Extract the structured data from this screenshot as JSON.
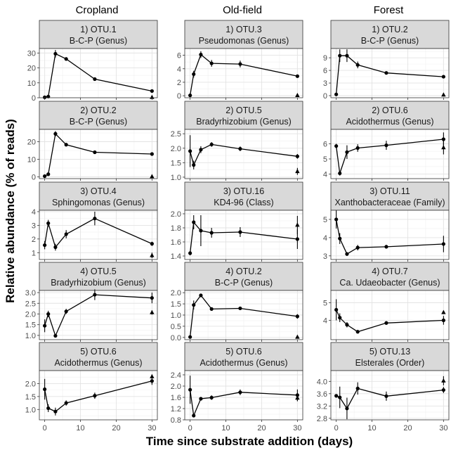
{
  "figure": {
    "ylabel": "Relative abundance (% of reads)",
    "xlabel": "Time since substrate addition (days)",
    "columns": [
      "Cropland",
      "Old-field",
      "Forest"
    ]
  },
  "chart_data": [
    {
      "type": "line",
      "column": "Cropland",
      "row": 1,
      "title_line1": "1)   OTU.1",
      "title_line2": "B-C-P (Genus)",
      "ylim": [
        0,
        33
      ],
      "yticks": [
        0,
        10,
        20,
        30
      ],
      "xlim": [
        -1.5,
        31.5
      ],
      "xticks": [
        0,
        10,
        20,
        30
      ],
      "series": [
        {
          "x": [
            0,
            1,
            3,
            6,
            14,
            30
          ],
          "y": [
            0.3,
            0.8,
            29.5,
            26,
            12.5,
            4.5
          ],
          "err": [
            0,
            0.4,
            2.5,
            1.2,
            0.8,
            0.6
          ]
        }
      ],
      "extra": {
        "x": 30,
        "y": 0.3,
        "marker": "triangle"
      }
    },
    {
      "type": "line",
      "column": "Old-field",
      "row": 1,
      "title_line1": "1)   OTU.3",
      "title_line2": "Pseudomonas (Genus)",
      "ylim": [
        -0.3,
        7.0
      ],
      "yticks": [
        0,
        2,
        4,
        6
      ],
      "xlim": [
        -1.5,
        31.5
      ],
      "xticks": [
        0,
        10,
        20,
        30
      ],
      "series": [
        {
          "x": [
            0,
            1,
            3,
            6,
            14,
            30
          ],
          "y": [
            0.05,
            3.2,
            6.1,
            4.8,
            4.7,
            2.9
          ],
          "err": [
            0,
            0.5,
            0.5,
            0.5,
            0.5,
            0.2
          ]
        }
      ],
      "extra": {
        "x": 30,
        "y": 0.05,
        "marker": "triangle"
      }
    },
    {
      "type": "line",
      "column": "Forest",
      "row": 1,
      "title_line1": "1)   OTU.2",
      "title_line2": "B-C-P (Genus)",
      "ylim": [
        -0.5,
        11.2
      ],
      "yticks": [
        0,
        3,
        6,
        9
      ],
      "xlim": [
        -1.5,
        31.5
      ],
      "xticks": [
        0,
        10,
        20,
        30
      ],
      "series": [
        {
          "x": [
            0,
            1,
            3,
            6,
            14,
            30
          ],
          "y": [
            0.3,
            9.5,
            9.5,
            7.3,
            5.4,
            4.5
          ],
          "err": [
            0,
            1.5,
            1.5,
            0.8,
            0.3,
            0.3
          ]
        }
      ],
      "extra": {
        "x": 30,
        "y": 0.2,
        "marker": "triangle"
      }
    },
    {
      "type": "line",
      "column": "Cropland",
      "row": 2,
      "title_line1": "2)   OTU.2",
      "title_line2": "B-C-P (Genus)",
      "ylim": [
        -1,
        27
      ],
      "yticks": [
        0,
        10,
        20
      ],
      "xlim": [
        -1.5,
        31.5
      ],
      "xticks": [
        0,
        10,
        20,
        30
      ],
      "series": [
        {
          "x": [
            0,
            1,
            3,
            6,
            14,
            30
          ],
          "y": [
            0.4,
            1.5,
            24.5,
            18.3,
            14.0,
            13.0
          ],
          "err": [
            0,
            0.5,
            1.5,
            0.8,
            0.5,
            0.5
          ]
        }
      ],
      "extra": {
        "x": 30,
        "y": 0.2,
        "marker": "triangle"
      }
    },
    {
      "type": "line",
      "column": "Old-field",
      "row": 2,
      "title_line1": "2)   OTU.5",
      "title_line2": "Bradyrhizobium (Genus)",
      "ylim": [
        0.95,
        2.65
      ],
      "yticks": [
        1.0,
        1.5,
        2.0,
        2.5
      ],
      "xlim": [
        -1.5,
        31.5
      ],
      "xticks": [
        0,
        10,
        20,
        30
      ],
      "series": [
        {
          "x": [
            0,
            1,
            3,
            6,
            14,
            30
          ],
          "y": [
            1.9,
            1.42,
            1.95,
            2.13,
            1.98,
            1.72
          ],
          "err": [
            0.55,
            0.15,
            0.12,
            0.08,
            0.08,
            0.08
          ]
        }
      ],
      "extra": {
        "x": 30,
        "y": 1.2,
        "marker": "triangle",
        "err": 0.12
      }
    },
    {
      "type": "line",
      "column": "Forest",
      "row": 2,
      "title_line1": "2)   OTU.6",
      "title_line2": "Acidothermus (Genus)",
      "ylim": [
        3.7,
        6.95
      ],
      "yticks": [
        4,
        5,
        6
      ],
      "xlim": [
        -1.5,
        31.5
      ],
      "xticks": [
        0,
        10,
        20,
        30
      ],
      "series": [
        {
          "x": [
            0,
            1,
            3,
            6,
            14,
            30
          ],
          "y": [
            5.85,
            4.05,
            5.45,
            5.72,
            5.9,
            6.3
          ],
          "err": [
            0.15,
            0.15,
            0.45,
            0.25,
            0.3,
            0.45
          ]
        }
      ],
      "extra": {
        "x": 30,
        "y": 5.75,
        "marker": "triangle",
        "err": 0.45
      }
    },
    {
      "type": "line",
      "column": "Cropland",
      "row": 3,
      "title_line1": "3)   OTU.4",
      "title_line2": "Sphingomonas (Genus)",
      "ylim": [
        0.5,
        4.1
      ],
      "yticks": [
        1,
        2,
        3,
        4
      ],
      "xlim": [
        -1.5,
        31.5
      ],
      "xticks": [
        0,
        10,
        20,
        30
      ],
      "series": [
        {
          "x": [
            0,
            1,
            3,
            6,
            14,
            30
          ],
          "y": [
            1.55,
            3.15,
            1.4,
            2.35,
            3.5,
            1.65
          ],
          "err": [
            0.3,
            0.25,
            0.25,
            0.3,
            0.5,
            0.15
          ]
        }
      ],
      "extra": {
        "x": 30,
        "y": 0.8,
        "marker": "triangle",
        "err": 0.2
      }
    },
    {
      "type": "line",
      "column": "Old-field",
      "row": 3,
      "title_line1": "3)   OTU.16",
      "title_line2": "KD4-96 (Class)",
      "ylim": [
        1.35,
        2.05
      ],
      "yticks": [
        1.4,
        1.6,
        1.8,
        2.0
      ],
      "xlim": [
        -1.5,
        31.5
      ],
      "xticks": [
        0,
        10,
        20,
        30
      ],
      "series": [
        {
          "x": [
            0,
            1,
            3,
            6,
            14,
            30
          ],
          "y": [
            1.44,
            1.88,
            1.76,
            1.73,
            1.74,
            1.64
          ],
          "err": [
            0.03,
            0.1,
            0.22,
            0.07,
            0.07,
            0.14
          ]
        }
      ],
      "extra": {
        "x": 30,
        "y": 1.84,
        "marker": "triangle",
        "err": 0.13
      }
    },
    {
      "type": "line",
      "column": "Forest",
      "row": 3,
      "title_line1": "3)   OTU.11",
      "title_line2": "Xanthobacteraceae (Family)",
      "ylim": [
        2.8,
        5.5
      ],
      "yticks": [
        3,
        4,
        5
      ],
      "xlim": [
        -1.5,
        31.5
      ],
      "xticks": [
        0,
        10,
        20,
        30
      ],
      "series": [
        {
          "x": [
            0,
            1,
            3,
            6,
            14,
            30
          ],
          "y": [
            5.0,
            3.95,
            3.1,
            3.45,
            3.5,
            3.65
          ],
          "err": [
            0.5,
            0.3,
            0.1,
            0.15,
            0.1,
            0.45
          ]
        }
      ]
    },
    {
      "type": "line",
      "column": "Cropland",
      "row": 4,
      "title_line1": "4)   OTU.5",
      "title_line2": "Bradyrhizobium (Genus)",
      "ylim": [
        0.8,
        3.1
      ],
      "yticks": [
        1.0,
        1.5,
        2.0,
        2.5,
        3.0
      ],
      "xlim": [
        -1.5,
        31.5
      ],
      "xticks": [
        0,
        10,
        20,
        30
      ],
      "series": [
        {
          "x": [
            0,
            1,
            3,
            6,
            14,
            30
          ],
          "y": [
            1.45,
            2.0,
            0.98,
            2.12,
            2.9,
            2.75
          ],
          "err": [
            0.3,
            0.15,
            0.08,
            0.12,
            0.25,
            0.25
          ]
        }
      ],
      "extra": {
        "x": 30,
        "y": 2.07,
        "marker": "triangle",
        "err": 0.1
      }
    },
    {
      "type": "line",
      "column": "Old-field",
      "row": 4,
      "title_line1": "4)   OTU.2",
      "title_line2": "B-C-P (Genus)",
      "ylim": [
        -0.1,
        2.1
      ],
      "yticks": [
        0.0,
        0.5,
        1.0,
        1.5,
        2.0
      ],
      "xlim": [
        -1.5,
        31.5
      ],
      "xticks": [
        0,
        10,
        20,
        30
      ],
      "series": [
        {
          "x": [
            0,
            1,
            3,
            6,
            14,
            30
          ],
          "y": [
            0.02,
            1.45,
            1.88,
            1.27,
            1.3,
            0.94
          ],
          "err": [
            0,
            0.2,
            0.05,
            0.05,
            0.05,
            0.1
          ]
        }
      ],
      "extra": {
        "x": 30,
        "y": 0.02,
        "marker": "triangle"
      }
    },
    {
      "type": "line",
      "column": "Forest",
      "row": 4,
      "title_line1": "4)   OTU.7",
      "title_line2": "Ca. Udaeobacter (Genus)",
      "ylim": [
        2.9,
        5.7
      ],
      "yticks": [
        4,
        5
      ],
      "xlim": [
        -1.5,
        31.5
      ],
      "xticks": [
        0,
        10,
        20,
        30
      ],
      "series": [
        {
          "x": [
            0,
            1,
            3,
            6,
            14,
            30
          ],
          "y": [
            4.6,
            4.15,
            3.75,
            3.35,
            3.85,
            4.0
          ],
          "err": [
            0.6,
            0.25,
            0.15,
            0.1,
            0.1,
            0.25
          ]
        }
      ],
      "extra": {
        "x": 30,
        "y": 4.45,
        "marker": "triangle"
      }
    },
    {
      "type": "line",
      "column": "Cropland",
      "row": 5,
      "title_line1": "5)   OTU.6",
      "title_line2": "Acidothermus (Genus)",
      "ylim": [
        0.6,
        2.5
      ],
      "yticks": [
        1.0,
        1.5,
        2.0
      ],
      "xlim": [
        -1.5,
        31.5
      ],
      "xticks": [
        0,
        10,
        20,
        30
      ],
      "series": [
        {
          "x": [
            0,
            1,
            3,
            6,
            14,
            30
          ],
          "y": [
            1.78,
            1.05,
            0.92,
            1.25,
            1.53,
            2.1
          ],
          "err": [
            0.4,
            0.15,
            0.15,
            0.1,
            0.12,
            0.15
          ]
        }
      ],
      "extra": {
        "x": 30,
        "y": 2.27,
        "marker": "triangle",
        "err": 0.08
      }
    },
    {
      "type": "line",
      "column": "Old-field",
      "row": 5,
      "title_line1": "5)   OTU.6",
      "title_line2": "Acidothermus (Genus)",
      "ylim": [
        0.8,
        2.55
      ],
      "yticks": [
        0.8,
        1.2,
        1.6,
        2.0,
        2.4
      ],
      "xlim": [
        -1.5,
        31.5
      ],
      "xticks": [
        0,
        10,
        20,
        30
      ],
      "series": [
        {
          "x": [
            0,
            1,
            3,
            6,
            14,
            30
          ],
          "y": [
            1.87,
            0.95,
            1.55,
            1.59,
            1.78,
            1.68
          ],
          "err": [
            0.5,
            0.05,
            0.05,
            0.08,
            0.1,
            0.2
          ]
        }
      ],
      "extra": {
        "x": 30,
        "y": 1.58,
        "marker": "triangle",
        "err": 0.12
      }
    },
    {
      "type": "line",
      "column": "Forest",
      "row": 5,
      "title_line1": "5)   OTU.13",
      "title_line2": "Elsterales (Order)",
      "ylim": [
        2.75,
        4.35
      ],
      "yticks": [
        2.8,
        3.2,
        3.6,
        4.0
      ],
      "xlim": [
        -1.5,
        31.5
      ],
      "xticks": [
        0,
        10,
        20,
        30
      ],
      "series": [
        {
          "x": [
            0,
            1,
            3,
            6,
            14,
            30
          ],
          "y": [
            3.53,
            3.48,
            3.12,
            3.77,
            3.52,
            3.72
          ],
          "err": [
            0.05,
            0.35,
            0.35,
            0.2,
            0.15,
            0.1
          ]
        }
      ],
      "extra": {
        "x": 30,
        "y": 4.02,
        "marker": "triangle",
        "err": 0.15
      }
    }
  ]
}
